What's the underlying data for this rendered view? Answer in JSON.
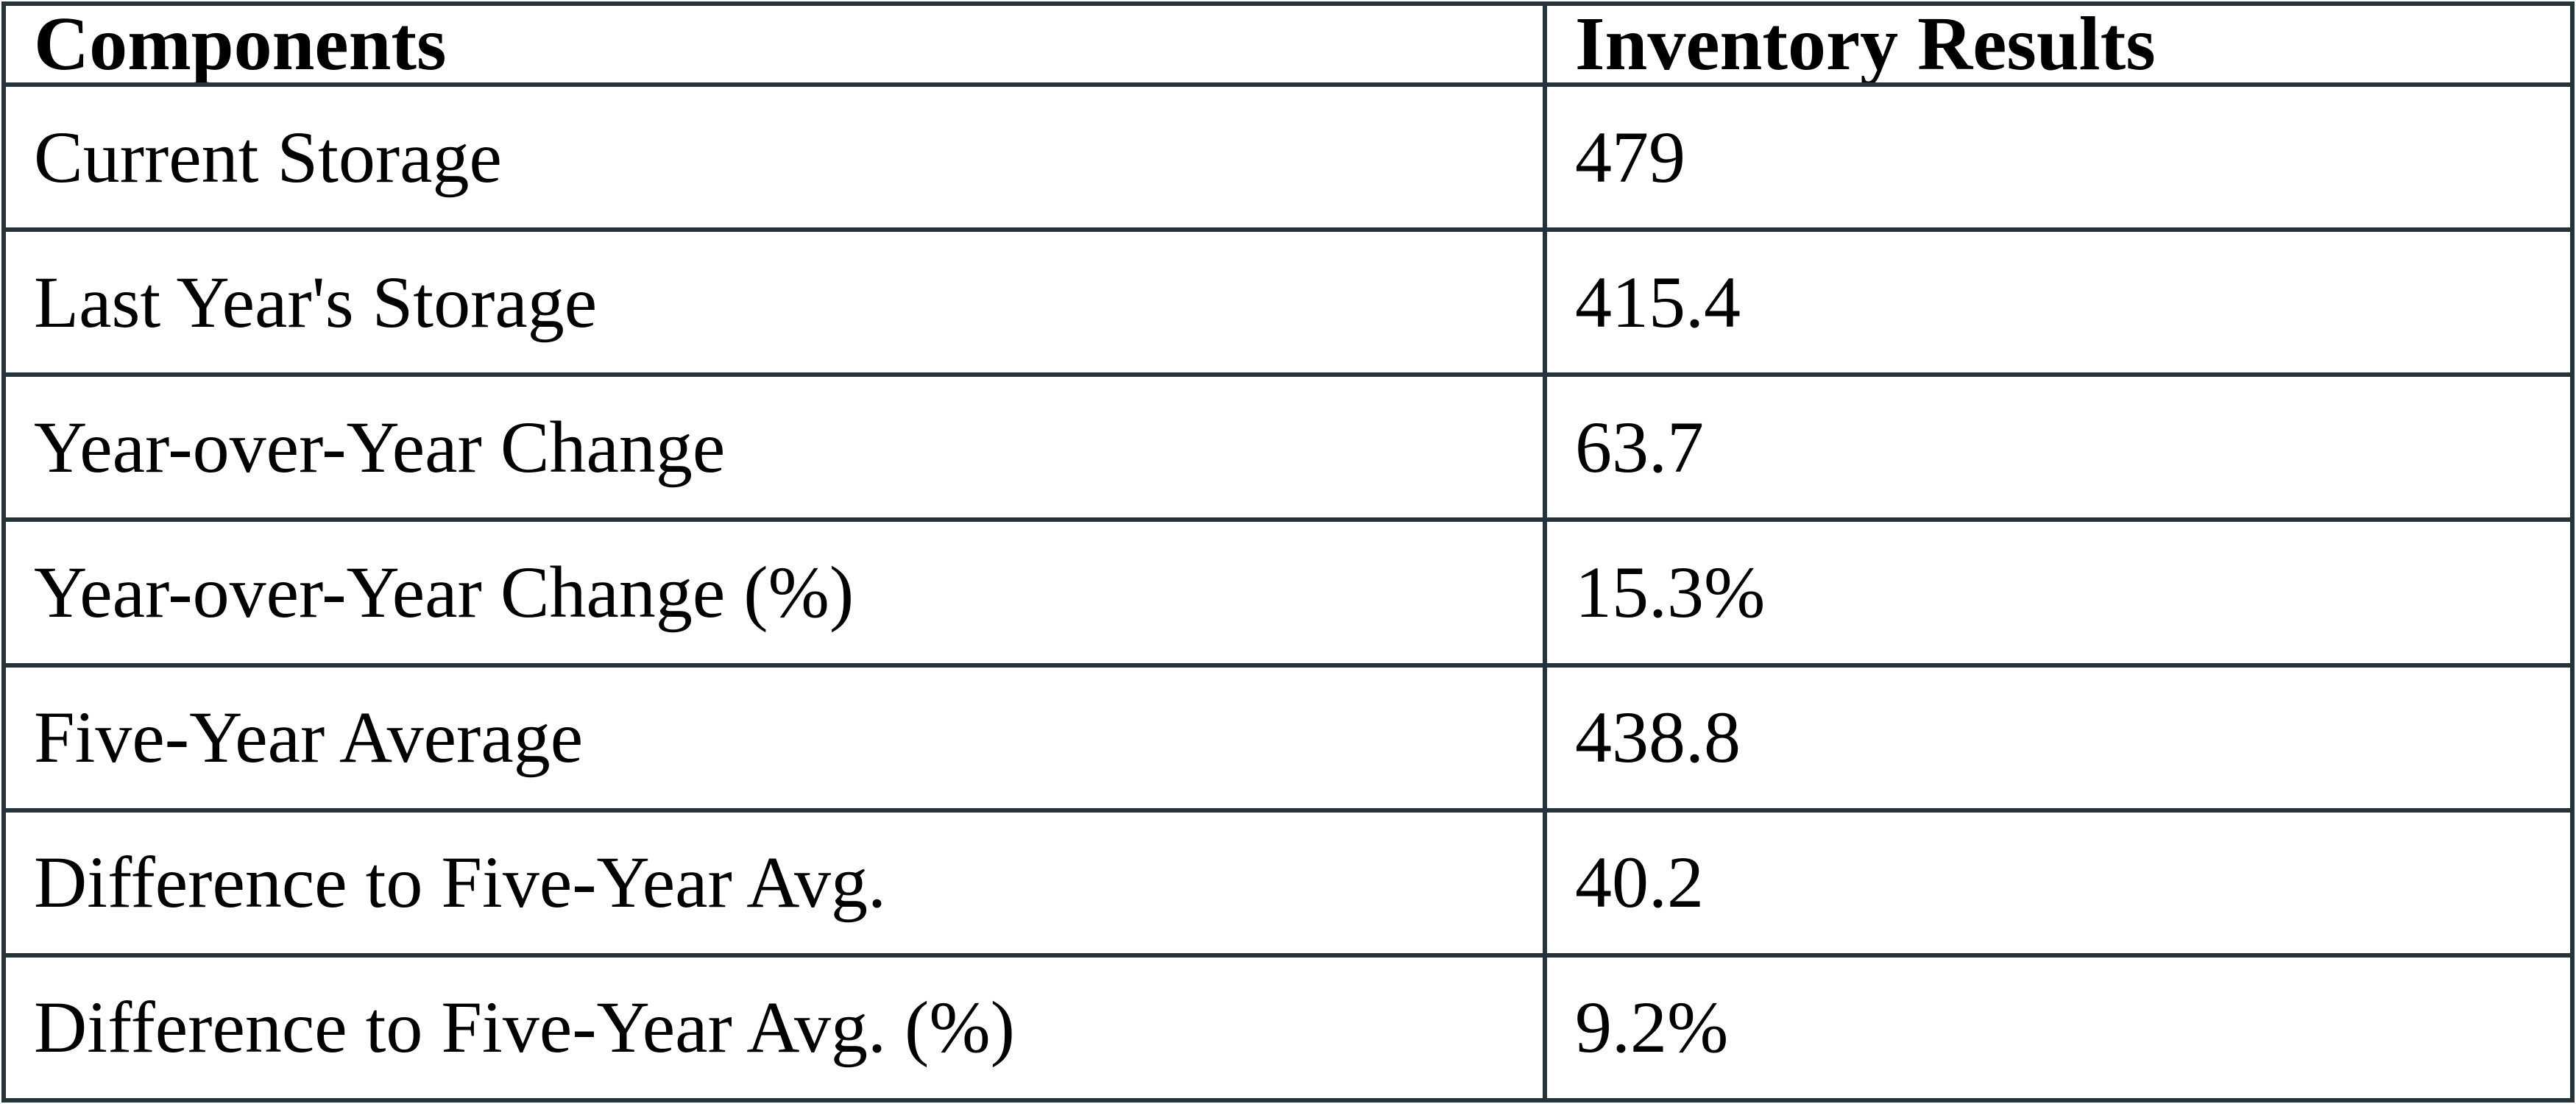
{
  "colors": {
    "border": "#24333a",
    "text": "#000000",
    "background": "#ffffff"
  },
  "table": {
    "columns": [
      "Components",
      "Inventory Results"
    ],
    "rows": [
      {
        "component": "Current Storage",
        "value": "479"
      },
      {
        "component": "Last Year's Storage",
        "value": "415.4"
      },
      {
        "component": "Year-over-Year Change",
        "value": "63.7"
      },
      {
        "component": "Year-over-Year Change (%)",
        "value": "15.3%"
      },
      {
        "component": "Five-Year Average",
        "value": "438.8"
      },
      {
        "component": "Difference to Five-Year Avg.",
        "value": "40.2"
      },
      {
        "component": "Difference to Five-Year Avg. (%)",
        "value": "9.2%"
      }
    ]
  },
  "chart_data": {
    "type": "table",
    "title": "Inventory Results",
    "columns": [
      "Components",
      "Inventory Results"
    ],
    "rows": [
      [
        "Current Storage",
        "479"
      ],
      [
        "Last Year's Storage",
        "415.4"
      ],
      [
        "Year-over-Year Change",
        "63.7"
      ],
      [
        "Year-over-Year Change (%)",
        "15.3%"
      ],
      [
        "Five-Year Average",
        "438.8"
      ],
      [
        "Difference to Five-Year Avg.",
        "40.2"
      ],
      [
        "Difference to Five-Year Avg. (%)",
        "9.2%"
      ]
    ]
  }
}
